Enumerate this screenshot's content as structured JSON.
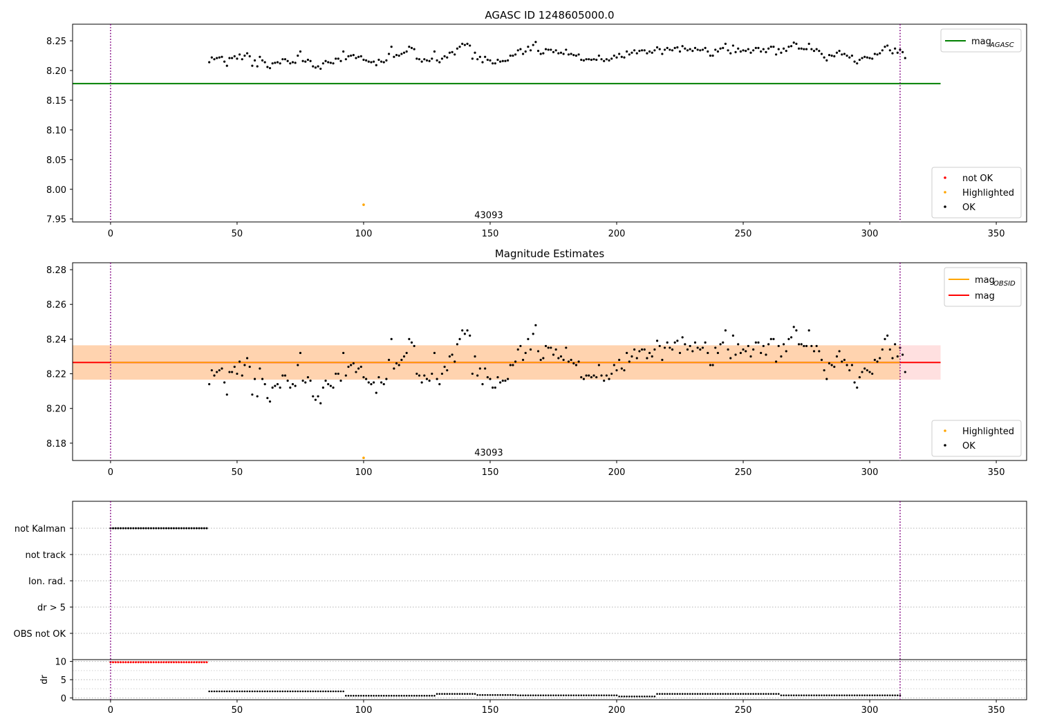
{
  "chart_data": [
    {
      "type": "scatter",
      "title": "AGASC ID 1248605000.0",
      "xlim": [
        -15,
        362
      ],
      "ylim": [
        7.945,
        8.278
      ],
      "xticks": [
        0,
        50,
        100,
        150,
        200,
        250,
        300,
        350
      ],
      "yticks": [
        7.95,
        8.0,
        8.05,
        8.1,
        8.15,
        8.2,
        8.25
      ],
      "ytick_labels": [
        "7.95",
        "8.00",
        "8.05",
        "8.10",
        "8.15",
        "8.20",
        "8.25"
      ],
      "vlines": [
        0,
        312
      ],
      "annotation": {
        "text": "43093",
        "x": 156,
        "y": 7.955
      },
      "hline": {
        "name": "mag_AGASC",
        "y": 8.178,
        "x0": -15,
        "x1": 328,
        "color": "#008000"
      },
      "legend_lines": [
        {
          "label": "mag",
          "sub": "AGASC",
          "color": "#008000"
        }
      ],
      "legend_points": [
        {
          "label": "not OK",
          "color": "#ff0000"
        },
        {
          "label": "Highlighted",
          "color": "#ffa500"
        },
        {
          "label": "OK",
          "color": "#000000"
        }
      ],
      "highlighted": [
        {
          "x": 100,
          "y": 7.974
        }
      ],
      "series_ok": {
        "x_start": 39,
        "x_step": 1,
        "y": [
          8.214,
          8.222,
          8.219,
          8.221,
          8.222,
          8.223,
          8.215,
          8.208,
          8.221,
          8.221,
          8.224,
          8.22,
          8.227,
          8.219,
          8.225,
          8.229,
          8.224,
          8.208,
          8.217,
          8.207,
          8.223,
          8.217,
          8.214,
          8.206,
          8.204,
          8.212,
          8.213,
          8.214,
          8.212,
          8.219,
          8.219,
          8.216,
          8.212,
          8.214,
          8.213,
          8.225,
          8.232,
          8.216,
          8.215,
          8.218,
          8.216,
          8.207,
          8.205,
          8.207,
          8.203,
          8.212,
          8.216,
          8.214,
          8.213,
          8.212,
          8.22,
          8.22,
          8.216,
          8.232,
          8.219,
          8.224,
          8.225,
          8.226,
          8.221,
          8.223,
          8.224,
          8.218,
          8.217,
          8.215,
          8.214,
          8.215,
          8.209,
          8.218,
          8.215,
          8.214,
          8.217,
          8.228,
          8.24,
          8.223,
          8.226,
          8.225,
          8.228,
          8.23,
          8.232,
          8.24,
          8.238,
          8.236,
          8.22,
          8.219,
          8.215,
          8.219,
          8.217,
          8.216,
          8.22,
          8.232,
          8.217,
          8.214,
          8.22,
          8.224,
          8.222,
          8.23,
          8.231,
          8.227,
          8.237,
          8.24,
          8.245,
          8.243,
          8.245,
          8.242,
          8.22,
          8.23,
          8.219,
          8.223,
          8.214,
          8.223,
          8.218,
          8.217,
          8.212,
          8.212,
          8.218,
          8.215,
          8.216,
          8.216,
          8.217,
          8.225,
          8.225,
          8.227,
          8.234,
          8.236,
          8.228,
          8.232,
          8.24,
          8.234,
          8.243,
          8.248,
          8.233,
          8.228,
          8.229,
          8.236,
          8.235,
          8.235,
          8.231,
          8.234,
          8.229,
          8.23,
          8.228,
          8.235,
          8.227,
          8.228,
          8.226,
          8.225,
          8.227,
          8.218,
          8.217,
          8.219,
          8.219,
          8.218,
          8.219,
          8.218,
          8.225,
          8.219,
          8.216,
          8.219,
          8.217,
          8.22,
          8.225,
          8.222,
          8.228,
          8.223,
          8.222,
          8.232,
          8.227,
          8.23,
          8.234,
          8.229,
          8.233,
          8.234,
          8.234,
          8.229,
          8.232,
          8.23,
          8.234,
          8.239,
          8.236,
          8.228,
          8.235,
          8.238,
          8.235,
          8.234,
          8.238,
          8.239,
          8.232,
          8.241,
          8.237,
          8.234,
          8.236,
          8.233,
          8.238,
          8.235,
          8.234,
          8.235,
          8.238,
          8.232,
          8.225,
          8.225,
          8.235,
          8.232,
          8.237,
          8.238,
          8.245,
          8.234,
          8.229,
          8.242,
          8.231,
          8.237,
          8.232,
          8.234,
          8.233,
          8.236,
          8.23,
          8.234,
          8.238,
          8.238,
          8.232,
          8.236,
          8.231,
          8.237,
          8.24,
          8.24,
          8.227,
          8.236,
          8.23,
          8.237,
          8.233,
          8.24,
          8.241,
          8.247,
          8.245,
          8.237,
          8.237,
          8.236,
          8.236,
          8.245,
          8.236,
          8.233,
          8.236,
          8.233,
          8.228,
          8.222,
          8.217,
          8.226,
          8.225,
          8.224,
          8.23,
          8.233,
          8.227,
          8.228,
          8.225,
          8.222,
          8.225,
          8.215,
          8.212,
          8.218,
          8.221,
          8.223,
          8.222,
          8.221,
          8.22,
          8.228,
          8.227,
          8.229,
          8.234,
          8.24,
          8.242,
          8.234,
          8.229,
          8.237,
          8.23,
          8.235,
          8.231,
          8.221
        ]
      }
    },
    {
      "type": "scatter",
      "title": "Magnitude Estimates",
      "xlim": [
        -15,
        362
      ],
      "ylim": [
        8.17,
        8.284
      ],
      "xticks": [
        0,
        50,
        100,
        150,
        200,
        250,
        300,
        350
      ],
      "yticks": [
        8.18,
        8.2,
        8.22,
        8.24,
        8.26,
        8.28
      ],
      "ytick_labels": [
        "8.18",
        "8.20",
        "8.22",
        "8.24",
        "8.26",
        "8.28"
      ],
      "vlines": [
        0,
        312
      ],
      "annotation": {
        "text": "43093",
        "x": 156,
        "y": 8.174
      },
      "bands": [
        {
          "name": "mag-band",
          "y0": 8.2166,
          "y1": 8.2364,
          "x0": -15,
          "x1": 328,
          "color": "#ff0000",
          "opacity": 0.12
        },
        {
          "name": "mag-obsid-band",
          "y0": 8.2166,
          "y1": 8.2364,
          "x0": -15,
          "x1": 312,
          "color": "#ffa500",
          "opacity": 0.22
        }
      ],
      "hline": {
        "name": "mag",
        "y": 8.2265,
        "x0": -15,
        "x1": 328,
        "color": "#ff0000"
      },
      "obsid_line": {
        "y": 8.2265,
        "x0": 0,
        "x1": 312,
        "color": "#ffa500"
      },
      "legend_lines": [
        {
          "label": "mag",
          "sub": "OBSID",
          "color": "#ffa500"
        },
        {
          "label": "mag",
          "sub": "",
          "color": "#ff0000"
        }
      ],
      "legend_points": [
        {
          "label": "Highlighted",
          "color": "#ffa500"
        },
        {
          "label": "OK",
          "color": "#000000"
        }
      ],
      "highlighted": [
        {
          "x": 100,
          "y": 8.1715
        }
      ],
      "series_ok": {
        "ref": 0
      }
    },
    {
      "type": "scatter",
      "title": "",
      "xlim": [
        -15,
        362
      ],
      "xticks": [
        0,
        50,
        100,
        150,
        200,
        250,
        300,
        350
      ],
      "vlines": [
        0,
        312
      ],
      "flags": [
        "not Kalman",
        "not track",
        "Ion. rad.",
        "dr > 5",
        "OBS not OK"
      ],
      "flag_hits": {
        "not Kalman": {
          "x0": 0,
          "x1": 38
        }
      },
      "dr": {
        "ylabel": "dr",
        "ylim": [
          -0.5,
          10.5
        ],
        "yticks": [
          0,
          5,
          10
        ],
        "ytick_labels": [
          "0",
          "5",
          "10"
        ],
        "not_ok": {
          "x0": 0,
          "x1": 38,
          "y": 9.8,
          "color": "#ff0000"
        },
        "ok_segments": [
          {
            "x0": 39,
            "x1": 92,
            "y": 1.8
          },
          {
            "x0": 93,
            "x1": 128,
            "y": 0.6
          },
          {
            "x0": 129,
            "x1": 144,
            "y": 1.1
          },
          {
            "x0": 145,
            "x1": 160,
            "y": 0.8
          },
          {
            "x0": 161,
            "x1": 200,
            "y": 0.7
          },
          {
            "x0": 201,
            "x1": 215,
            "y": 0.4
          },
          {
            "x0": 216,
            "x1": 264,
            "y": 1.1
          },
          {
            "x0": 265,
            "x1": 312,
            "y": 0.7
          }
        ]
      }
    }
  ]
}
